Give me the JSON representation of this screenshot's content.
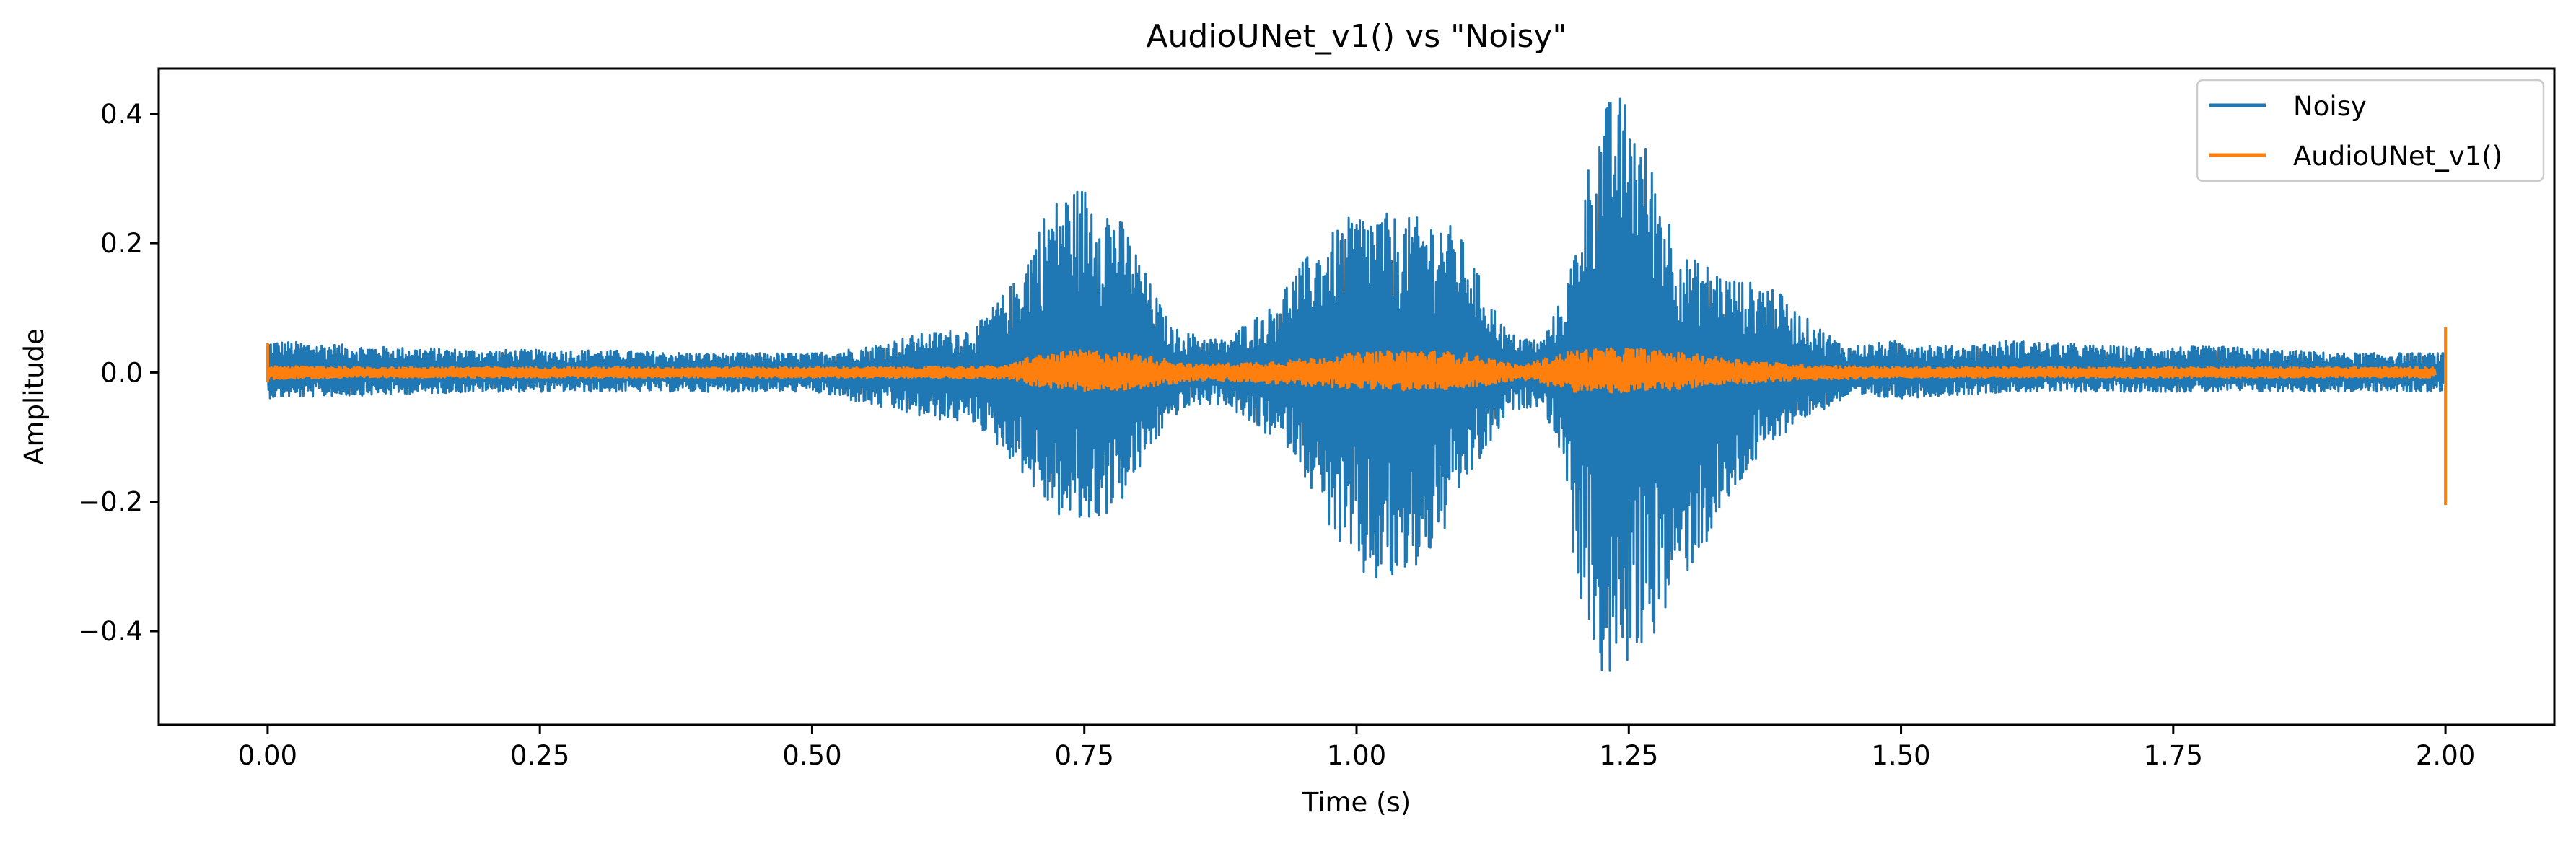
{
  "chart_data": {
    "type": "line",
    "title": "AudioUNet_v1() vs \"Noisy\"",
    "xlabel": "Time (s)",
    "ylabel": "Amplitude",
    "xlim": [
      -0.1,
      2.1
    ],
    "ylim": [
      -0.545,
      0.47
    ],
    "x_ticks": [
      0.0,
      0.25,
      0.5,
      0.75,
      1.0,
      1.25,
      1.5,
      1.75,
      2.0
    ],
    "x_tick_labels": [
      "0.00",
      "0.25",
      "0.50",
      "0.75",
      "1.00",
      "1.25",
      "1.50",
      "1.75",
      "2.00"
    ],
    "y_ticks": [
      0.4,
      0.2,
      0.0,
      -0.2,
      -0.4
    ],
    "y_tick_labels": [
      "0.4",
      "0.2",
      "0.0",
      "−0.2",
      "−0.4"
    ],
    "grid": false,
    "legend_position": "top-right",
    "series": [
      {
        "name": "Noisy",
        "color": "#1f77b4",
        "envelope": {
          "x": [
            0.0,
            0.1,
            0.2,
            0.3,
            0.4,
            0.5,
            0.55,
            0.6,
            0.65,
            0.69,
            0.71,
            0.73,
            0.75,
            0.77,
            0.79,
            0.81,
            0.83,
            0.85,
            0.88,
            0.9,
            0.92,
            0.94,
            0.96,
            0.98,
            1.0,
            1.02,
            1.04,
            1.06,
            1.08,
            1.1,
            1.12,
            1.14,
            1.17,
            1.19,
            1.2,
            1.21,
            1.22,
            1.23,
            1.24,
            1.25,
            1.26,
            1.28,
            1.3,
            1.32,
            1.34,
            1.36,
            1.38,
            1.4,
            1.45,
            1.5,
            1.55,
            1.6,
            1.7,
            1.8,
            1.9,
            2.0
          ],
          "upper": [
            0.05,
            0.04,
            0.035,
            0.035,
            0.03,
            0.03,
            0.04,
            0.06,
            0.07,
            0.15,
            0.24,
            0.28,
            0.29,
            0.27,
            0.22,
            0.14,
            0.07,
            0.06,
            0.05,
            0.08,
            0.1,
            0.15,
            0.19,
            0.22,
            0.25,
            0.25,
            0.24,
            0.24,
            0.24,
            0.2,
            0.12,
            0.06,
            0.05,
            0.12,
            0.19,
            0.3,
            0.38,
            0.42,
            0.43,
            0.42,
            0.38,
            0.28,
            0.18,
            0.17,
            0.15,
            0.14,
            0.14,
            0.1,
            0.04,
            0.05,
            0.04,
            0.05,
            0.04,
            0.04,
            0.03,
            0.03
          ],
          "lower": [
            -0.04,
            -0.035,
            -0.03,
            -0.03,
            -0.03,
            -0.03,
            -0.05,
            -0.07,
            -0.08,
            -0.15,
            -0.2,
            -0.23,
            -0.24,
            -0.22,
            -0.19,
            -0.12,
            -0.07,
            -0.05,
            -0.05,
            -0.08,
            -0.1,
            -0.12,
            -0.19,
            -0.26,
            -0.32,
            -0.33,
            -0.33,
            -0.3,
            -0.25,
            -0.17,
            -0.12,
            -0.06,
            -0.05,
            -0.14,
            -0.31,
            -0.39,
            -0.45,
            -0.5,
            -0.47,
            -0.45,
            -0.43,
            -0.39,
            -0.32,
            -0.27,
            -0.21,
            -0.15,
            -0.12,
            -0.08,
            -0.04,
            -0.04,
            -0.035,
            -0.03,
            -0.03,
            -0.03,
            -0.03,
            -0.03
          ]
        }
      },
      {
        "name": "AudioUNet_v1()",
        "color": "#ff7f0e",
        "envelope": {
          "x": [
            0.0,
            0.1,
            0.3,
            0.5,
            0.6,
            0.68,
            0.7,
            0.75,
            0.8,
            0.85,
            0.9,
            0.95,
            1.0,
            1.05,
            1.1,
            1.15,
            1.2,
            1.25,
            1.3,
            1.35,
            1.4,
            1.5,
            1.75,
            1.99
          ],
          "upper": [
            0.01,
            0.008,
            0.008,
            0.008,
            0.008,
            0.01,
            0.025,
            0.035,
            0.028,
            0.012,
            0.015,
            0.02,
            0.03,
            0.035,
            0.03,
            0.01,
            0.035,
            0.038,
            0.03,
            0.02,
            0.012,
            0.008,
            0.008,
            0.008
          ],
          "lower": [
            -0.01,
            -0.008,
            -0.008,
            -0.008,
            -0.008,
            -0.01,
            -0.02,
            -0.03,
            -0.025,
            -0.012,
            -0.015,
            -0.02,
            -0.025,
            -0.028,
            -0.025,
            -0.01,
            -0.03,
            -0.032,
            -0.025,
            -0.018,
            -0.012,
            -0.008,
            -0.008,
            -0.008
          ]
        },
        "spikes": [
          {
            "x": 0.0,
            "low": -0.015,
            "high": 0.045
          },
          {
            "x": 2.0,
            "low": -0.205,
            "high": 0.07
          }
        ]
      }
    ]
  }
}
